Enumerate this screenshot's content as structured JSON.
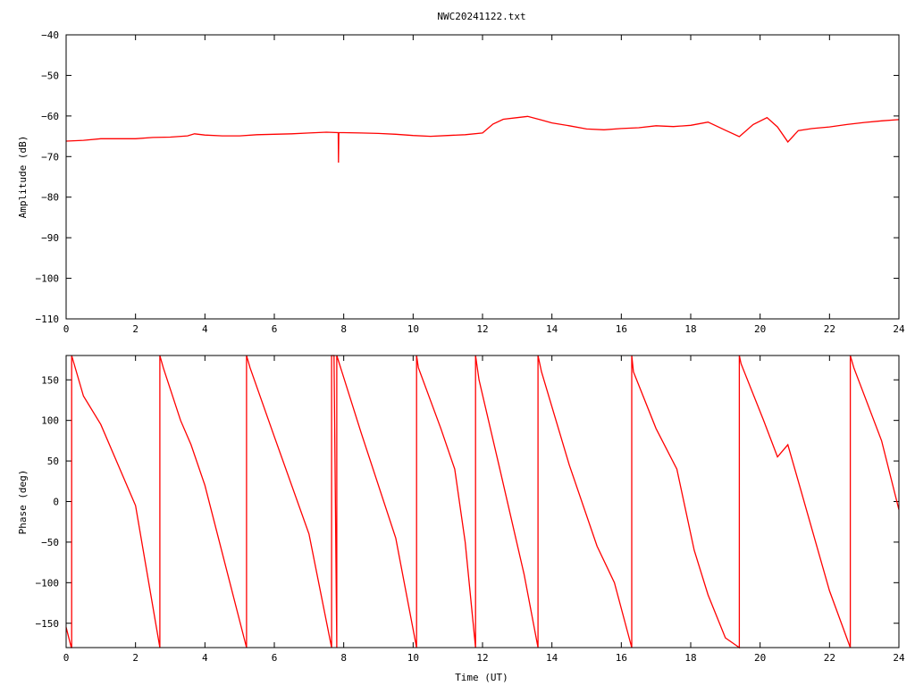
{
  "chart_data": [
    {
      "type": "line",
      "title": "NWC20241122.txt",
      "xlabel": "",
      "ylabel": "Amplitude (dB)",
      "xlim": [
        0,
        24
      ],
      "ylim": [
        -110,
        -40
      ],
      "xticks": [
        "0",
        "2",
        "4",
        "6",
        "8",
        "10",
        "12",
        "14",
        "16",
        "18",
        "20",
        "22",
        "24"
      ],
      "yticks": [
        "-110",
        "-100",
        "-90",
        "-80",
        "-70",
        "-60",
        "-50",
        "-40"
      ],
      "grid": false,
      "series": [
        {
          "color": "#ff0000",
          "x": [
            0,
            0.5,
            1,
            1.5,
            2,
            2.5,
            3,
            3.5,
            3.7,
            4,
            4.5,
            5,
            5.5,
            6,
            6.5,
            7,
            7.5,
            7.84,
            7.85,
            7.86,
            8,
            8.5,
            9,
            9.5,
            10,
            10.5,
            11,
            11.5,
            12,
            12.3,
            12.6,
            13,
            13.3,
            13.7,
            14,
            14.5,
            15,
            15.5,
            16,
            16.5,
            17,
            17.5,
            18,
            18.5,
            19,
            19.4,
            19.8,
            20.2,
            20.5,
            20.8,
            21.1,
            21.5,
            22,
            22.5,
            23,
            23.5,
            24
          ],
          "y": [
            -66.2,
            -66,
            -65.6,
            -65.6,
            -65.6,
            -65.3,
            -65.2,
            -64.9,
            -64.4,
            -64.7,
            -64.9,
            -64.9,
            -64.6,
            -64.5,
            -64.4,
            -64.2,
            -64,
            -64.1,
            -71.5,
            -64.1,
            -64.1,
            -64.2,
            -64.3,
            -64.5,
            -64.8,
            -65,
            -64.8,
            -64.6,
            -64.2,
            -62,
            -60.8,
            -60.4,
            -60.1,
            -61,
            -61.7,
            -62.4,
            -63.2,
            -63.4,
            -63.1,
            -62.9,
            -62.4,
            -62.6,
            -62.3,
            -61.5,
            -63.5,
            -65.1,
            -62.1,
            -60.4,
            -62.7,
            -66.4,
            -63.6,
            -63.1,
            -62.7,
            -62.1,
            -61.6,
            -61.2,
            -60.9
          ]
        }
      ]
    },
    {
      "type": "line",
      "title": "",
      "xlabel": "Time (UT)",
      "ylabel": "Phase (deg)",
      "xlim": [
        0,
        24
      ],
      "ylim": [
        -180,
        180
      ],
      "xticks": [
        "0",
        "2",
        "4",
        "6",
        "8",
        "10",
        "12",
        "14",
        "16",
        "18",
        "20",
        "22",
        "24"
      ],
      "yticks": [
        "-150",
        "-100",
        "-50",
        "0",
        "50",
        "100",
        "150"
      ],
      "grid": false,
      "series": [
        {
          "color": "#ff0000",
          "x": [
            0,
            0.15,
            0.16,
            0.16,
            0.5,
            1,
            2,
            2.7,
            2.7,
            2.8,
            3.3,
            3.6,
            4,
            5.2,
            5.2,
            5.3,
            6,
            7,
            7.65,
            7.65,
            7.72,
            7.8,
            7.8,
            8.5,
            9.5,
            10.1,
            10.1,
            10.15,
            10.8,
            11.2,
            11.5,
            11.8,
            11.8,
            11.9,
            12.5,
            13.2,
            13.6,
            13.6,
            13.7,
            14.5,
            15.3,
            15.8,
            16.3,
            16.3,
            16.35,
            17,
            17.6,
            18.1,
            18.5,
            19,
            19.4,
            19.4,
            19.45,
            20.1,
            20.5,
            20.8,
            21.2,
            22,
            22.6,
            22.6,
            22.7,
            23.5,
            24
          ],
          "y": [
            -155,
            -180,
            -180,
            180,
            130,
            95,
            -5,
            -180,
            180,
            165,
            100,
            70,
            20,
            -180,
            180,
            165,
            80,
            -40,
            -180,
            180,
            180,
            -180,
            180,
            85,
            -45,
            -180,
            180,
            165,
            90,
            40,
            -50,
            -180,
            180,
            150,
            40,
            -90,
            -180,
            180,
            160,
            45,
            -55,
            -100,
            -180,
            180,
            160,
            90,
            40,
            -60,
            -115,
            -168,
            -180,
            180,
            170,
            100,
            55,
            70,
            10,
            -110,
            -180,
            180,
            165,
            75,
            -10
          ]
        }
      ]
    }
  ]
}
